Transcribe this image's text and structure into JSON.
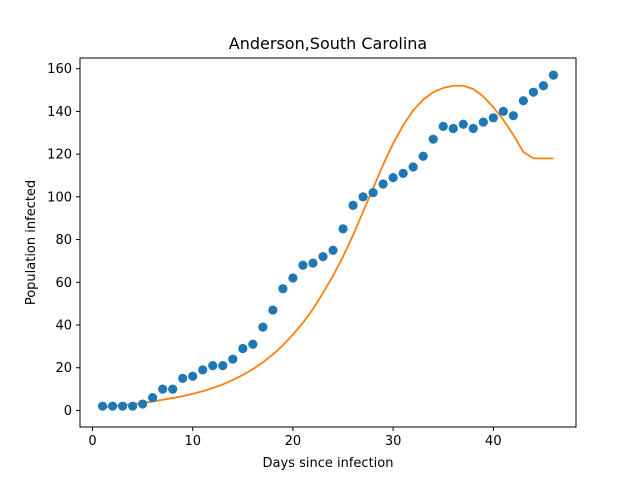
{
  "chart_data": {
    "type": "scatter",
    "title": "Anderson,South Carolina",
    "xlabel": "Days since infection",
    "ylabel": "Population infected",
    "xlim": [
      -1.25,
      48.25
    ],
    "ylim": [
      -7.75,
      165.0
    ],
    "xticks": [
      0,
      10,
      20,
      30,
      40
    ],
    "yticks": [
      0,
      20,
      40,
      60,
      80,
      100,
      120,
      140,
      160
    ],
    "grid": false,
    "legend": "none",
    "series": [
      {
        "kind": "scatter",
        "color": "#1f77b4",
        "x": [
          1,
          2,
          3,
          4,
          5,
          6,
          7,
          8,
          9,
          10,
          11,
          12,
          13,
          14,
          15,
          16,
          17,
          18,
          19,
          20,
          21,
          22,
          23,
          24,
          25,
          26,
          27,
          28,
          29,
          30,
          31,
          32,
          33,
          34,
          35,
          36,
          37,
          38,
          39,
          40,
          41,
          42,
          43,
          44,
          45,
          46
        ],
        "y": [
          2,
          2,
          2,
          2,
          3,
          6,
          10,
          10,
          15,
          16,
          19,
          21,
          21,
          24,
          29,
          31,
          39,
          47,
          57,
          62,
          68,
          69,
          72,
          75,
          85,
          96,
          100,
          102,
          106,
          109,
          111,
          114,
          119,
          127,
          133,
          132,
          134,
          132,
          135,
          137,
          140,
          138,
          145,
          149,
          152,
          157
        ]
      },
      {
        "kind": "line",
        "color": "#ff7f0e",
        "x": [
          1,
          2,
          3,
          4,
          5,
          6,
          7,
          8,
          9,
          10,
          11,
          12,
          13,
          14,
          15,
          16,
          17,
          18,
          19,
          20,
          21,
          22,
          23,
          24,
          25,
          26,
          27,
          28,
          29,
          30,
          31,
          32,
          33,
          34,
          35,
          36,
          37,
          38,
          39,
          40,
          41,
          42,
          43,
          44,
          45,
          46
        ],
        "y": [
          1.5,
          2,
          2.5,
          3,
          3.5,
          4.2,
          5,
          5.8,
          6.7,
          7.8,
          9,
          10.5,
          12.2,
          14.3,
          16.6,
          19.3,
          22.5,
          26.2,
          30.5,
          35.5,
          41,
          47.5,
          55,
          63,
          72,
          82,
          93,
          104,
          115,
          125,
          133.5,
          140.5,
          145.5,
          149,
          151,
          152,
          152,
          150.5,
          147,
          142,
          136,
          129,
          121,
          118,
          118,
          118
        ]
      }
    ]
  }
}
